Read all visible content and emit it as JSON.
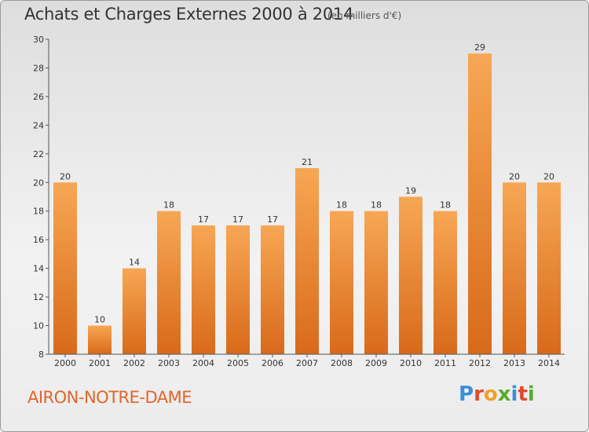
{
  "title": "Achats et Charges Externes 2000 à 2014",
  "subtitle": "(en milliers d'€)",
  "commune": "AIRON-NOTRE-DAME",
  "logo": {
    "text": "Proxiti",
    "letters": [
      "P",
      "r",
      "o",
      "x",
      "i",
      "t",
      "i"
    ],
    "colors": [
      "#3a8fd6",
      "#e24a2a",
      "#f2a12a",
      "#5aab2e",
      "#3a8fd6",
      "#e24a2a",
      "#5aab2e"
    ]
  },
  "colors": {
    "bar_top": "#f7a754",
    "bar_bottom": "#d86a1a",
    "commune_text": "#e0662c"
  },
  "chart_data": {
    "type": "bar",
    "categories": [
      "2000",
      "2001",
      "2002",
      "2003",
      "2004",
      "2005",
      "2006",
      "2007",
      "2008",
      "2009",
      "2010",
      "2011",
      "2012",
      "2013",
      "2014"
    ],
    "values": [
      20,
      10,
      14,
      18,
      17,
      17,
      17,
      21,
      18,
      18,
      19,
      18,
      29,
      20,
      20
    ],
    "ylim": [
      8,
      30
    ],
    "yticks": [
      8,
      10,
      12,
      14,
      16,
      18,
      20,
      22,
      24,
      26,
      28,
      30
    ],
    "grid": false
  }
}
